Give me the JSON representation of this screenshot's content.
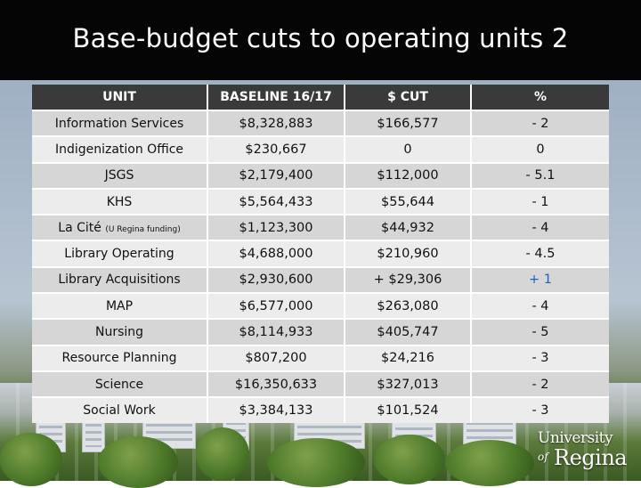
{
  "slide": {
    "title": "Base-budget cuts to operating units 2"
  },
  "table": {
    "headers": [
      "UNIT",
      "BASELINE 16/17",
      "$ CUT",
      "%"
    ],
    "rows": [
      {
        "unit": "Information Services",
        "baseline": "$8,328,883",
        "cut": "$166,577",
        "pct": "- 2"
      },
      {
        "unit": "Indigenization Office",
        "baseline": "$230,667",
        "cut": "0",
        "pct": "0"
      },
      {
        "unit": "JSGS",
        "baseline": "$2,179,400",
        "cut": "$112,000",
        "pct": "- 5.1"
      },
      {
        "unit": "KHS",
        "baseline": "$5,564,433",
        "cut": "$55,644",
        "pct": "- 1"
      },
      {
        "unit": "La Cité",
        "unit_note": "(U Regina funding)",
        "baseline": "$1,123,300",
        "cut": "$44,932",
        "pct": "- 4"
      },
      {
        "unit": "Library Operating",
        "baseline": "$4,688,000",
        "cut": "$210,960",
        "pct": "- 4.5"
      },
      {
        "unit": "Library Acquisitions",
        "baseline": "$2,930,600",
        "cut": "+ $29,306",
        "pct": "+ 1"
      },
      {
        "unit": "MAP",
        "baseline": "$6,577,000",
        "cut": "$263,080",
        "pct": "- 4"
      },
      {
        "unit": "Nursing",
        "baseline": "$8,114,933",
        "cut": "$405,747",
        "pct": "- 5"
      },
      {
        "unit": "Resource Planning",
        "baseline": "$807,200",
        "cut": "$24,216",
        "pct": "- 3"
      },
      {
        "unit": "Science",
        "baseline": "$16,350,633",
        "cut": "$327,013",
        "pct": "- 2"
      },
      {
        "unit": "Social Work",
        "baseline": "$3,384,133",
        "cut": "$101,524",
        "pct": "- 3"
      }
    ]
  },
  "logo": {
    "line1": "University",
    "line2": "of",
    "line3": "Regina"
  },
  "colors": {
    "title_bg": "#050505",
    "header_bg": "#3a3a3a",
    "row_dark": "#d6d6d6",
    "row_light": "#ececec",
    "positive": "#1f5fbf"
  }
}
